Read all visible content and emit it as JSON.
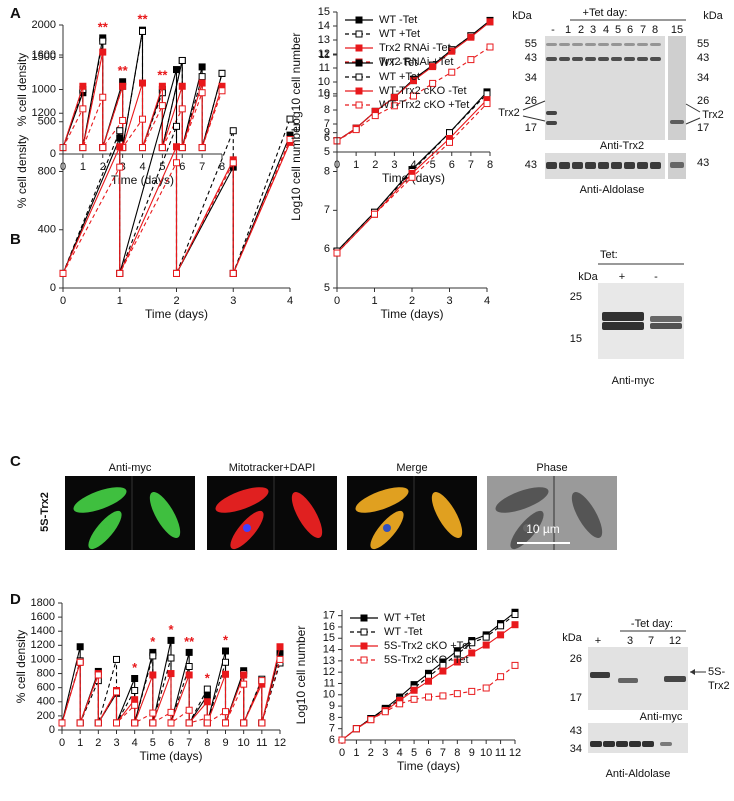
{
  "chart_data": [
    {
      "type": "line",
      "xlabel": "Time (days)",
      "ylabel": "% cell density",
      "xlim": [
        0,
        8
      ],
      "ylim": [
        0,
        2000
      ],
      "xticks": [
        0,
        1,
        2,
        3,
        4,
        5,
        6,
        7,
        8
      ],
      "yticks": [
        0,
        500,
        1000,
        1500,
        2000
      ],
      "x": [
        0,
        1,
        1,
        2,
        2,
        3,
        3,
        4,
        4,
        5,
        5,
        6,
        6,
        7,
        7,
        8
      ],
      "series": [
        {
          "name": "WT -Tet",
          "color": "#000000",
          "dash": false,
          "marker": "filled",
          "values": [
            100,
            950,
            100,
            1800,
            100,
            1120,
            100,
            1920,
            100,
            1000,
            100,
            1450,
            100,
            1350,
            100,
            1250
          ]
        },
        {
          "name": "WT +Tet",
          "color": "#000000",
          "dash": true,
          "marker": "open",
          "values": [
            100,
            1000,
            100,
            1750,
            100,
            1050,
            100,
            1900,
            100,
            950,
            100,
            1450,
            100,
            1200,
            100,
            1250
          ]
        },
        {
          "name": "Trx2 RNAi -Tet",
          "color": "#e8191c",
          "dash": false,
          "marker": "filled",
          "values": [
            100,
            1050,
            100,
            1580,
            100,
            1050,
            100,
            1100,
            100,
            1050,
            100,
            1050,
            100,
            1100,
            100,
            1050
          ]
        },
        {
          "name": "Trx2 RNAi +Tet",
          "color": "#e8191c",
          "dash": true,
          "marker": "open",
          "values": [
            100,
            700,
            100,
            880,
            100,
            520,
            100,
            540,
            100,
            750,
            100,
            700,
            100,
            950,
            100,
            980
          ]
        }
      ],
      "annotation_color": "#e8191c",
      "annotations": [
        {
          "text": "**",
          "x": 2
        },
        {
          "text": "**",
          "x": 3
        },
        {
          "text": "**",
          "x": 4
        },
        {
          "text": "**",
          "x": 5
        }
      ]
    },
    {
      "type": "line",
      "xlabel": "Time (days)",
      "ylabel": "Log10 cell number",
      "xlim": [
        0,
        8
      ],
      "ylim": [
        5,
        15
      ],
      "xticks": [
        0,
        1,
        2,
        3,
        4,
        5,
        6,
        7,
        8
      ],
      "yticks": [
        5,
        6,
        7,
        8,
        9,
        10,
        11,
        12,
        13,
        14,
        15
      ],
      "legend": "upper left",
      "x": [
        0,
        1,
        2,
        3,
        4,
        5,
        6,
        7,
        8
      ],
      "series": [
        {
          "name": "WT -Tet",
          "color": "#000000",
          "dash": false,
          "marker": "filled",
          "values": [
            5.8,
            6.7,
            7.9,
            8.9,
            10.2,
            11.2,
            12.3,
            13.3,
            14.4
          ]
        },
        {
          "name": "WT +Tet",
          "color": "#000000",
          "dash": true,
          "marker": "open",
          "values": [
            5.8,
            6.7,
            7.9,
            8.9,
            10.1,
            11.2,
            12.3,
            13.3,
            14.3
          ]
        },
        {
          "name": "Trx2 RNAi -Tet",
          "color": "#e8191c",
          "dash": false,
          "marker": "filled",
          "values": [
            5.8,
            6.7,
            7.9,
            8.9,
            10.1,
            11.1,
            12.2,
            13.2,
            14.3
          ]
        },
        {
          "name": "Trx2 RNAi +Tet",
          "color": "#e8191c",
          "dash": true,
          "marker": "open",
          "values": [
            5.8,
            6.6,
            7.6,
            8.3,
            9.0,
            9.9,
            10.7,
            11.6,
            12.5
          ]
        }
      ]
    },
    {
      "type": "line",
      "xlabel": "Time (days)",
      "ylabel": "% cell density",
      "xlim": [
        0,
        4
      ],
      "ylim": [
        0,
        1600
      ],
      "xticks": [
        0,
        1,
        2,
        3,
        4
      ],
      "yticks": [
        0,
        400,
        800,
        1200,
        1600
      ],
      "x": [
        0,
        1,
        1,
        2,
        2,
        3,
        3,
        4
      ],
      "series": [
        {
          "name": "WT -Tet",
          "color": "#000000",
          "dash": false,
          "marker": "filled",
          "values": [
            100,
            1030,
            100,
            1500,
            100,
            830,
            100,
            1050
          ]
        },
        {
          "name": "WT +Tet",
          "color": "#000000",
          "dash": true,
          "marker": "open",
          "values": [
            100,
            1080,
            100,
            1110,
            100,
            1080,
            100,
            1160
          ]
        },
        {
          "name": "WT-Trx2 cKO -Tet",
          "color": "#e8191c",
          "dash": false,
          "marker": "filled",
          "values": [
            100,
            970,
            100,
            970,
            100,
            880,
            100,
            1000
          ]
        },
        {
          "name": "WT-Trx2 cKO +Tet",
          "color": "#e8191c",
          "dash": true,
          "marker": "open",
          "values": [
            100,
            830,
            100,
            860,
            100,
            860,
            100,
            1020
          ]
        }
      ]
    },
    {
      "type": "line",
      "xlabel": "Time (days)",
      "ylabel": "Log10 cell number",
      "xlim": [
        0,
        4
      ],
      "ylim": [
        5,
        11
      ],
      "xticks": [
        0,
        1,
        2,
        3,
        4
      ],
      "yticks": [
        5,
        6,
        7,
        8,
        9,
        10,
        11
      ],
      "legend": "upper left",
      "x": [
        0,
        1,
        2,
        3,
        4
      ],
      "series": [
        {
          "name": "WT -Tet",
          "color": "#000000",
          "dash": false,
          "marker": "filled",
          "values": [
            5.95,
            6.95,
            8.05,
            9.0,
            10.05
          ]
        },
        {
          "name": "WT +Tet",
          "color": "#000000",
          "dash": true,
          "marker": "open",
          "values": [
            5.95,
            6.95,
            8.0,
            9.0,
            10.0
          ]
        },
        {
          "name": "WT-Trx2 cKO -Tet",
          "color": "#e8191c",
          "dash": false,
          "marker": "filled",
          "values": [
            5.9,
            6.9,
            7.95,
            8.85,
            9.85
          ]
        },
        {
          "name": "WT-Trx2 cKO +Tet",
          "color": "#e8191c",
          "dash": true,
          "marker": "open",
          "values": [
            5.9,
            6.9,
            7.85,
            8.75,
            9.75
          ]
        }
      ]
    },
    {
      "type": "line",
      "xlabel": "Time (days)",
      "ylabel": "% cell density",
      "xlim": [
        0,
        12
      ],
      "ylim": [
        0,
        1800
      ],
      "xticks": [
        0,
        1,
        2,
        3,
        4,
        5,
        6,
        7,
        8,
        9,
        10,
        11,
        12
      ],
      "yticks": [
        0,
        200,
        400,
        600,
        800,
        1000,
        1200,
        1400,
        1600,
        1800
      ],
      "x": [
        0,
        1,
        1,
        2,
        2,
        3,
        3,
        4,
        4,
        5,
        5,
        6,
        6,
        7,
        7,
        8,
        8,
        9,
        9,
        10,
        10,
        11,
        11,
        12
      ],
      "series": [
        {
          "name": "WT +Tet",
          "color": "#000000",
          "dash": false,
          "marker": "filled",
          "values": [
            100,
            1180,
            100,
            830,
            100,
            520,
            100,
            730,
            100,
            1100,
            100,
            1270,
            100,
            1100,
            100,
            490,
            100,
            1120,
            100,
            840,
            100,
            700,
            100,
            1100
          ]
        },
        {
          "name": "WT -Tet",
          "color": "#000000",
          "dash": true,
          "marker": "open",
          "values": [
            100,
            980,
            100,
            700,
            100,
            1000,
            100,
            560,
            100,
            1050,
            100,
            1020,
            100,
            900,
            100,
            580,
            100,
            960,
            100,
            800,
            100,
            720,
            100,
            950
          ]
        },
        {
          "name": "5S-Trx2 cKO +Tet",
          "color": "#e8191c",
          "dash": false,
          "marker": "filled",
          "values": [
            100,
            960,
            100,
            800,
            100,
            560,
            100,
            430,
            100,
            780,
            100,
            800,
            100,
            780,
            100,
            400,
            100,
            790,
            100,
            780,
            100,
            650,
            100,
            1180
          ]
        },
        {
          "name": "5S-Trx2 cKO -Tet",
          "color": "#e8191c",
          "dash": true,
          "marker": "open",
          "values": [
            100,
            960,
            100,
            780,
            100,
            540,
            100,
            350,
            100,
            240,
            100,
            250,
            100,
            280,
            100,
            170,
            100,
            260,
            100,
            650,
            100,
            700,
            100,
            1000
          ]
        }
      ],
      "annotation_color": "#e8191c",
      "annotations": [
        {
          "text": "*",
          "x": 4
        },
        {
          "text": "*",
          "x": 5
        },
        {
          "text": "*",
          "x": 6
        },
        {
          "text": "**",
          "x": 7
        },
        {
          "text": "*",
          "x": 8
        },
        {
          "text": "*",
          "x": 9
        }
      ]
    },
    {
      "type": "line",
      "xlabel": "Time (days)",
      "ylabel": "Log10 cell number",
      "xlim": [
        0,
        12
      ],
      "ylim": [
        6,
        17.5
      ],
      "xticks": [
        0,
        1,
        2,
        3,
        4,
        5,
        6,
        7,
        8,
        9,
        10,
        11,
        12
      ],
      "yticks": [
        6,
        7,
        8,
        9,
        10,
        11,
        12,
        13,
        14,
        15,
        16,
        17
      ],
      "legend": "upper left",
      "x": [
        0,
        1,
        2,
        3,
        4,
        5,
        6,
        7,
        8,
        9,
        10,
        11,
        12
      ],
      "series": [
        {
          "name": "WT +Tet",
          "color": "#000000",
          "dash": false,
          "marker": "filled",
          "values": [
            6,
            7,
            7.9,
            8.8,
            9.8,
            10.9,
            11.9,
            12.9,
            13.9,
            14.8,
            15.3,
            16.3,
            17.3
          ]
        },
        {
          "name": "WT -Tet",
          "color": "#000000",
          "dash": true,
          "marker": "open",
          "values": [
            6,
            7,
            7.9,
            8.7,
            9.6,
            10.6,
            11.6,
            12.6,
            13.6,
            14.6,
            15.1,
            16.1,
            17.1
          ]
        },
        {
          "name": "5S-Trx2 cKO +Tet",
          "color": "#e8191c",
          "dash": false,
          "marker": "filled",
          "values": [
            6,
            7,
            7.8,
            8.6,
            9.5,
            10.4,
            11.2,
            12.1,
            12.9,
            13.7,
            14.4,
            15.3,
            16.2
          ]
        },
        {
          "name": "5S-Trx2 cKO -Tet",
          "color": "#e8191c",
          "dash": true,
          "marker": "open",
          "values": [
            6,
            7,
            7.8,
            8.5,
            9.2,
            9.6,
            9.8,
            9.9,
            10.1,
            10.3,
            10.6,
            11.6,
            12.6
          ]
        }
      ]
    }
  ],
  "panel_labels": [
    "A",
    "B",
    "C",
    "D"
  ],
  "blot_a": {
    "header": "+Tet day:",
    "lanes": [
      "-",
      "1",
      "2",
      "3",
      "4",
      "5",
      "6",
      "7",
      "8",
      "15"
    ],
    "kda": "kDa",
    "markers": [
      55,
      43,
      34,
      26,
      17
    ],
    "band_label": "Trx2",
    "antibody": "Anti-Trx2",
    "loading_marker": 43,
    "loading_antibody": "Anti-Aldolase"
  },
  "blot_b": {
    "header": "Tet:",
    "lanes": [
      "+",
      "-"
    ],
    "kda": "kDa",
    "markers": [
      25,
      15
    ],
    "antibody": "Anti-myc"
  },
  "micrographs": {
    "row_label": "5S-Trx2",
    "columns": [
      "Anti-myc",
      "Mitotracker+DAPI",
      "Merge",
      "Phase"
    ],
    "scale_bar": "10 µm"
  },
  "blot_d": {
    "header": "-Tet day:",
    "lanes": [
      "+",
      "3",
      "7",
      "12"
    ],
    "kda": "kDa",
    "markers": [
      26,
      17
    ],
    "band_label_lines": [
      "5S-",
      "Trx2"
    ],
    "antibody": "Anti-myc",
    "loading_markers": [
      43,
      34
    ],
    "loading_antibody": "Anti-Aldolase"
  }
}
